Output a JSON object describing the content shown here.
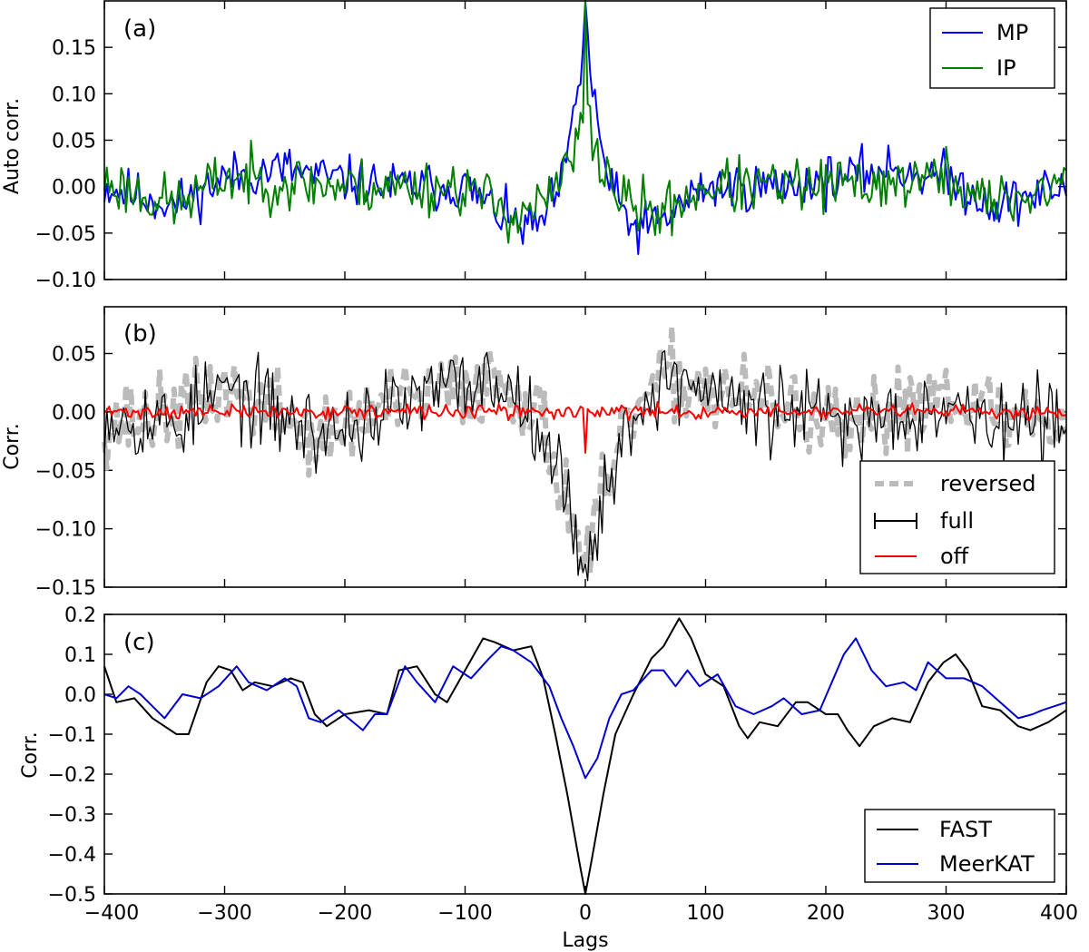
{
  "figure": {
    "xlabel": "Lags",
    "xlim": [
      -400,
      400
    ],
    "xticks": [
      -400,
      -300,
      -200,
      -100,
      0,
      100,
      200,
      300,
      400
    ],
    "xtick_labels": [
      "−400",
      "−300",
      "−200",
      "−100",
      "0",
      "100",
      "200",
      "300",
      "400"
    ]
  },
  "chart_data": [
    {
      "id": "a",
      "type": "line",
      "panel_label": "(a)",
      "ylabel": "Auto corr.",
      "ylim": [
        -0.1,
        0.2
      ],
      "yticks": [
        -0.1,
        -0.05,
        0.0,
        0.05,
        0.1,
        0.15
      ],
      "ytick_labels": [
        "−0.10",
        "−0.05",
        "0.00",
        "0.05",
        "0.10",
        "0.15"
      ],
      "legend_position": "top-right",
      "series": [
        {
          "name": "MP",
          "color": "#0000ff",
          "style": "solid",
          "noise": 0.013,
          "seed": 11,
          "shape": [
            [
              -400,
              0.0
            ],
            [
              -340,
              -0.02
            ],
            [
              -300,
              0.01
            ],
            [
              -250,
              0.02
            ],
            [
              -220,
              0.01
            ],
            [
              -160,
              0.0
            ],
            [
              -100,
              0.0
            ],
            [
              -60,
              -0.04
            ],
            [
              -40,
              -0.045
            ],
            [
              -20,
              0.0
            ],
            [
              -10,
              0.07
            ],
            [
              -4,
              0.12
            ],
            [
              -1,
              0.18
            ],
            [
              0,
              0.2
            ],
            [
              1,
              0.18
            ],
            [
              4,
              0.12
            ],
            [
              10,
              0.07
            ],
            [
              20,
              0.0
            ],
            [
              40,
              -0.045
            ],
            [
              60,
              -0.04
            ],
            [
              100,
              0.0
            ],
            [
              160,
              0.0
            ],
            [
              220,
              0.01
            ],
            [
              250,
              0.02
            ],
            [
              300,
              0.01
            ],
            [
              340,
              -0.02
            ],
            [
              400,
              0.0
            ]
          ]
        },
        {
          "name": "IP",
          "color": "#007f00",
          "style": "solid",
          "noise": 0.015,
          "seed": 23,
          "shape": [
            [
              -400,
              0.005
            ],
            [
              -340,
              -0.02
            ],
            [
              -300,
              0.01
            ],
            [
              -200,
              0.0
            ],
            [
              -100,
              0.0
            ],
            [
              -60,
              -0.03
            ],
            [
              -30,
              -0.015
            ],
            [
              -15,
              0.02
            ],
            [
              -5,
              0.05
            ],
            [
              -2,
              0.08
            ],
            [
              0,
              0.2
            ],
            [
              2,
              0.08
            ],
            [
              5,
              0.05
            ],
            [
              15,
              0.02
            ],
            [
              30,
              -0.015
            ],
            [
              60,
              -0.03
            ],
            [
              100,
              0.0
            ],
            [
              200,
              0.0
            ],
            [
              300,
              0.01
            ],
            [
              340,
              -0.02
            ],
            [
              400,
              0.005
            ]
          ]
        }
      ]
    },
    {
      "id": "b",
      "type": "line",
      "panel_label": "(b)",
      "ylabel": "Corr.",
      "ylim": [
        -0.15,
        0.1
      ],
      "ytop": 0.09,
      "yticks": [
        -0.15,
        -0.1,
        -0.05,
        0.0,
        0.05
      ],
      "ytick_labels": [
        "−0.15",
        "−0.10",
        "−0.05",
        "0.00",
        "0.05"
      ],
      "legend_position": "bottom-right",
      "series": [
        {
          "name": "reversed",
          "color": "#bbbbbb",
          "style": "dashed",
          "noise": 0.017,
          "seed": 37,
          "shape": [
            [
              -400,
              -0.01
            ],
            [
              -340,
              0.0
            ],
            [
              -300,
              0.02
            ],
            [
              -260,
              0.005
            ],
            [
              -220,
              -0.025
            ],
            [
              -180,
              0.0
            ],
            [
              -140,
              0.01
            ],
            [
              -100,
              0.02
            ],
            [
              -70,
              0.03
            ],
            [
              -40,
              0.0
            ],
            [
              -20,
              -0.06
            ],
            [
              -5,
              -0.11
            ],
            [
              0,
              -0.13
            ],
            [
              5,
              -0.11
            ],
            [
              20,
              -0.06
            ],
            [
              40,
              0.0
            ],
            [
              70,
              0.03
            ],
            [
              100,
              0.02
            ],
            [
              140,
              0.01
            ],
            [
              180,
              0.0
            ],
            [
              220,
              -0.025
            ],
            [
              260,
              0.005
            ],
            [
              300,
              0.02
            ],
            [
              340,
              0.0
            ],
            [
              400,
              -0.01
            ]
          ]
        },
        {
          "name": "full",
          "color": "#000000",
          "style": "solid",
          "noise": 0.018,
          "seed": 53,
          "shape": [
            [
              -400,
              0.0
            ],
            [
              -340,
              -0.01
            ],
            [
              -300,
              0.02
            ],
            [
              -260,
              0.0
            ],
            [
              -220,
              -0.02
            ],
            [
              -180,
              -0.005
            ],
            [
              -140,
              0.01
            ],
            [
              -100,
              0.025
            ],
            [
              -70,
              0.025
            ],
            [
              -40,
              0.0
            ],
            [
              -20,
              -0.06
            ],
            [
              -5,
              -0.11
            ],
            [
              0,
              -0.13
            ],
            [
              5,
              -0.11
            ],
            [
              20,
              -0.06
            ],
            [
              40,
              0.0
            ],
            [
              70,
              0.03
            ],
            [
              100,
              0.02
            ],
            [
              140,
              0.0
            ],
            [
              180,
              0.0
            ],
            [
              220,
              -0.01
            ],
            [
              260,
              0.0
            ],
            [
              300,
              0.01
            ],
            [
              340,
              -0.01
            ],
            [
              400,
              -0.01
            ]
          ]
        },
        {
          "name": "off",
          "color": "#ff0000",
          "style": "solid",
          "noise": 0.003,
          "seed": 71,
          "shape": [
            [
              -400,
              0.0
            ],
            [
              -1,
              0.0
            ],
            [
              0,
              -0.035
            ],
            [
              1,
              0.0
            ],
            [
              400,
              0.0
            ]
          ]
        }
      ]
    },
    {
      "id": "c",
      "type": "line",
      "panel_label": "(c)",
      "ylabel": "Corr.",
      "ylim": [
        -0.5,
        0.2
      ],
      "yticks": [
        -0.5,
        -0.4,
        -0.3,
        -0.2,
        -0.1,
        0.0,
        0.1,
        0.2
      ],
      "ytick_labels": [
        "−0.5",
        "−0.4",
        "−0.3",
        "−0.2",
        "−0.1",
        "0.0",
        "0.1",
        "0.2"
      ],
      "legend_position": "bottom-right",
      "series": [
        {
          "name": "FAST",
          "color": "#000000",
          "style": "solid",
          "points": [
            [
              -400,
              0.07
            ],
            [
              -390,
              -0.02
            ],
            [
              -375,
              -0.01
            ],
            [
              -360,
              -0.06
            ],
            [
              -340,
              -0.1
            ],
            [
              -330,
              -0.1
            ],
            [
              -315,
              0.03
            ],
            [
              -305,
              0.07
            ],
            [
              -295,
              0.06
            ],
            [
              -285,
              0.01
            ],
            [
              -275,
              0.03
            ],
            [
              -260,
              0.02
            ],
            [
              -245,
              0.04
            ],
            [
              -235,
              0.03
            ],
            [
              -225,
              -0.05
            ],
            [
              -215,
              -0.08
            ],
            [
              -200,
              -0.05
            ],
            [
              -180,
              -0.04
            ],
            [
              -165,
              -0.05
            ],
            [
              -155,
              0.06
            ],
            [
              -140,
              0.07
            ],
            [
              -125,
              0.0
            ],
            [
              -115,
              -0.02
            ],
            [
              -100,
              0.06
            ],
            [
              -85,
              0.14
            ],
            [
              -75,
              0.13
            ],
            [
              -60,
              0.11
            ],
            [
              -45,
              0.12
            ],
            [
              -35,
              0.04
            ],
            [
              -25,
              -0.1
            ],
            [
              -15,
              -0.25
            ],
            [
              -5,
              -0.42
            ],
            [
              0,
              -0.5
            ],
            [
              5,
              -0.42
            ],
            [
              15,
              -0.25
            ],
            [
              25,
              -0.1
            ],
            [
              40,
              0.0
            ],
            [
              55,
              0.09
            ],
            [
              65,
              0.12
            ],
            [
              78,
              0.19
            ],
            [
              88,
              0.14
            ],
            [
              100,
              0.05
            ],
            [
              115,
              0.02
            ],
            [
              128,
              -0.08
            ],
            [
              135,
              -0.11
            ],
            [
              145,
              -0.07
            ],
            [
              160,
              -0.08
            ],
            [
              175,
              -0.02
            ],
            [
              185,
              -0.02
            ],
            [
              200,
              -0.05
            ],
            [
              210,
              -0.05
            ],
            [
              218,
              -0.09
            ],
            [
              228,
              -0.13
            ],
            [
              240,
              -0.08
            ],
            [
              255,
              -0.06
            ],
            [
              270,
              -0.07
            ],
            [
              285,
              0.03
            ],
            [
              298,
              0.08
            ],
            [
              308,
              0.1
            ],
            [
              318,
              0.06
            ],
            [
              330,
              -0.03
            ],
            [
              345,
              -0.04
            ],
            [
              360,
              -0.08
            ],
            [
              370,
              -0.09
            ],
            [
              385,
              -0.07
            ],
            [
              400,
              -0.04
            ]
          ]
        },
        {
          "name": "MeerKAT",
          "color": "#0000cc",
          "style": "solid",
          "points": [
            [
              -400,
              0.0
            ],
            [
              -390,
              -0.01
            ],
            [
              -380,
              0.02
            ],
            [
              -370,
              0.0
            ],
            [
              -360,
              -0.03
            ],
            [
              -350,
              -0.06
            ],
            [
              -335,
              0.0
            ],
            [
              -320,
              -0.01
            ],
            [
              -305,
              0.02
            ],
            [
              -290,
              0.07
            ],
            [
              -280,
              0.03
            ],
            [
              -265,
              0.01
            ],
            [
              -250,
              0.04
            ],
            [
              -240,
              0.02
            ],
            [
              -230,
              -0.06
            ],
            [
              -220,
              -0.07
            ],
            [
              -205,
              -0.04
            ],
            [
              -185,
              -0.09
            ],
            [
              -175,
              -0.05
            ],
            [
              -165,
              -0.05
            ],
            [
              -150,
              0.07
            ],
            [
              -140,
              0.03
            ],
            [
              -125,
              -0.02
            ],
            [
              -110,
              0.07
            ],
            [
              -95,
              0.04
            ],
            [
              -80,
              0.09
            ],
            [
              -70,
              0.12
            ],
            [
              -60,
              0.11
            ],
            [
              -45,
              0.08
            ],
            [
              -30,
              0.02
            ],
            [
              -20,
              -0.06
            ],
            [
              -10,
              -0.13
            ],
            [
              0,
              -0.21
            ],
            [
              10,
              -0.16
            ],
            [
              20,
              -0.06
            ],
            [
              30,
              0.0
            ],
            [
              40,
              0.01
            ],
            [
              55,
              0.06
            ],
            [
              65,
              0.06
            ],
            [
              75,
              0.02
            ],
            [
              85,
              0.06
            ],
            [
              95,
              0.02
            ],
            [
              110,
              0.05
            ],
            [
              125,
              -0.03
            ],
            [
              140,
              -0.05
            ],
            [
              155,
              -0.03
            ],
            [
              165,
              -0.01
            ],
            [
              180,
              -0.05
            ],
            [
              195,
              -0.04
            ],
            [
              205,
              0.03
            ],
            [
              215,
              0.1
            ],
            [
              225,
              0.14
            ],
            [
              238,
              0.06
            ],
            [
              250,
              0.02
            ],
            [
              265,
              0.03
            ],
            [
              275,
              0.01
            ],
            [
              285,
              0.08
            ],
            [
              300,
              0.04
            ],
            [
              315,
              0.04
            ],
            [
              330,
              0.02
            ],
            [
              345,
              -0.02
            ],
            [
              360,
              -0.06
            ],
            [
              372,
              -0.05
            ],
            [
              380,
              -0.04
            ],
            [
              390,
              -0.03
            ],
            [
              400,
              -0.02
            ]
          ]
        }
      ]
    }
  ]
}
